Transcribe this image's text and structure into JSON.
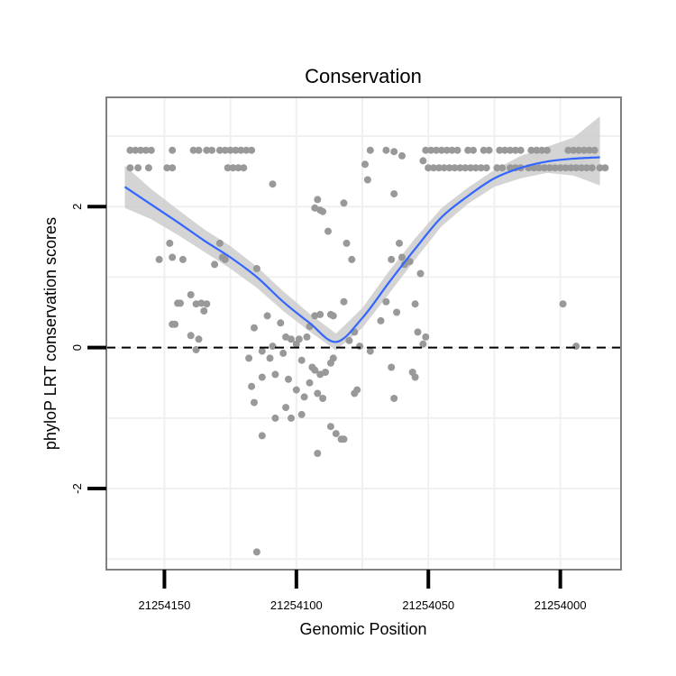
{
  "chart_data": {
    "type": "scatter",
    "title": "Conservation",
    "xlabel": "Genomic Position",
    "ylabel": "phyloP LRT conservation scores",
    "x_reversed": true,
    "xlim": [
      21254172,
      21253977
    ],
    "ylim": [
      -3.15,
      3.55
    ],
    "x_ticks": [
      21254150,
      21254100,
      21254050,
      21254000
    ],
    "x_tick_labels": [
      "21254150",
      "21254100",
      "21254050",
      "21254000"
    ],
    "y_ticks": [
      -2,
      0,
      2
    ],
    "y_tick_labels": [
      "-2",
      "0",
      "2"
    ],
    "grid": true,
    "reference_line": {
      "y": 0,
      "style": "dashed"
    },
    "colors": {
      "points": "#999999",
      "smooth": "#3366ff",
      "ribbon": "#cccccc",
      "grid": "#f0f0f0",
      "panel_border": "#808080"
    },
    "points": [
      [
        21254163,
        2.8
      ],
      [
        21254161,
        2.8
      ],
      [
        21254159,
        2.8
      ],
      [
        21254157,
        2.8
      ],
      [
        21254155,
        2.8
      ],
      [
        21254163,
        2.55
      ],
      [
        21254160,
        2.55
      ],
      [
        21254156,
        2.55
      ],
      [
        21254147,
        2.8
      ],
      [
        21254149,
        2.55
      ],
      [
        21254147,
        2.55
      ],
      [
        21254139,
        2.8
      ],
      [
        21254137,
        2.8
      ],
      [
        21254134,
        2.8
      ],
      [
        21254132,
        2.8
      ],
      [
        21254129,
        2.8
      ],
      [
        21254127,
        2.8
      ],
      [
        21254125,
        2.8
      ],
      [
        21254123,
        2.8
      ],
      [
        21254121,
        2.8
      ],
      [
        21254119,
        2.8
      ],
      [
        21254117,
        2.8
      ],
      [
        21254126,
        2.55
      ],
      [
        21254124,
        2.55
      ],
      [
        21254122,
        2.55
      ],
      [
        21254120,
        2.55
      ],
      [
        21254152,
        1.25
      ],
      [
        21254148,
        1.48
      ],
      [
        21254147,
        1.28
      ],
      [
        21254143,
        1.25
      ],
      [
        21254147,
        0.33
      ],
      [
        21254146,
        0.33
      ],
      [
        21254145,
        0.63
      ],
      [
        21254144,
        0.63
      ],
      [
        21254140,
        0.75
      ],
      [
        21254138,
        0.62
      ],
      [
        21254136,
        0.63
      ],
      [
        21254134,
        0.62
      ],
      [
        21254135,
        0.52
      ],
      [
        21254140,
        0.17
      ],
      [
        21254137,
        0.12
      ],
      [
        21254138,
        -0.03
      ],
      [
        21254131,
        1.18
      ],
      [
        21254129,
        1.48
      ],
      [
        21254128,
        1.28
      ],
      [
        21254127,
        1.25
      ],
      [
        21254115,
        1.12
      ],
      [
        21254109,
        2.32
      ],
      [
        21254100,
        0.05
      ],
      [
        21254109,
        0.02
      ],
      [
        21254116,
        0.28
      ],
      [
        21254111,
        0.45
      ],
      [
        21254106,
        0.35
      ],
      [
        21254104,
        0.15
      ],
      [
        21254102,
        0.12
      ],
      [
        21254099,
        0.12
      ],
      [
        21254096,
        0.15
      ],
      [
        21254095,
        0.3
      ],
      [
        21254093,
        0.45
      ],
      [
        21254091,
        0.47
      ],
      [
        21254087,
        0.47
      ],
      [
        21254086,
        0.45
      ],
      [
        21254118,
        -0.15
      ],
      [
        21254113,
        -0.05
      ],
      [
        21254110,
        -0.15
      ],
      [
        21254105,
        -0.08
      ],
      [
        21254098,
        -0.18
      ],
      [
        21254094,
        -0.28
      ],
      [
        21254093,
        -0.32
      ],
      [
        21254117,
        -0.55
      ],
      [
        21254113,
        -0.42
      ],
      [
        21254108,
        -0.38
      ],
      [
        21254103,
        -0.45
      ],
      [
        21254100,
        -0.6
      ],
      [
        21254095,
        -0.5
      ],
      [
        21254091,
        -0.38
      ],
      [
        21254116,
        -0.78
      ],
      [
        21254104,
        -0.85
      ],
      [
        21254098,
        -0.95
      ],
      [
        21254092,
        -0.65
      ],
      [
        21254090,
        -0.72
      ],
      [
        21254089,
        -0.35
      ],
      [
        21254087,
        -0.22
      ],
      [
        21254086,
        -0.15
      ],
      [
        21254113,
        -1.25
      ],
      [
        21254108,
        -1.0
      ],
      [
        21254102,
        -1.0
      ],
      [
        21254097,
        -0.7
      ],
      [
        21254092,
        -1.5
      ],
      [
        21254087,
        -1.12
      ],
      [
        21254085,
        -1.22
      ],
      [
        21254083,
        -1.3
      ],
      [
        21254082,
        -1.3
      ],
      [
        21254115,
        -2.9
      ],
      [
        21254093,
        1.98
      ],
      [
        21254092,
        2.1
      ],
      [
        21254091,
        1.95
      ],
      [
        21254090,
        1.93
      ],
      [
        21254088,
        1.65
      ],
      [
        21254082,
        2.05
      ],
      [
        21254081,
        1.48
      ],
      [
        21254079,
        1.25
      ],
      [
        21254082,
        0.65
      ],
      [
        21254078,
        0.22
      ],
      [
        21254076,
        0.02
      ],
      [
        21254080,
        0.1
      ],
      [
        21254078,
        -0.65
      ],
      [
        21254077,
        -0.6
      ],
      [
        21254072,
        -0.05
      ],
      [
        21254068,
        0.38
      ],
      [
        21254066,
        0.65
      ],
      [
        21254064,
        -0.28
      ],
      [
        21254063,
        -0.72
      ],
      [
        21254074,
        2.6
      ],
      [
        21254073,
        2.38
      ],
      [
        21254072,
        2.8
      ],
      [
        21254066,
        2.8
      ],
      [
        21254063,
        2.78
      ],
      [
        21254063,
        2.18
      ],
      [
        21254060,
        2.72
      ],
      [
        21254061,
        1.48
      ],
      [
        21254060,
        1.28
      ],
      [
        21254059,
        1.18
      ],
      [
        21254057,
        1.22
      ],
      [
        21254064,
        1.25
      ],
      [
        21254062,
        0.5
      ],
      [
        21254055,
        0.62
      ],
      [
        21254053,
        1.05
      ],
      [
        21254054,
        0.22
      ],
      [
        21254051,
        0.15
      ],
      [
        21254052,
        0.05
      ],
      [
        21254056,
        -0.35
      ],
      [
        21254055,
        -0.42
      ],
      [
        21254052,
        2.65
      ],
      [
        21254051,
        2.8
      ],
      [
        21254049,
        2.8
      ],
      [
        21254047,
        2.8
      ],
      [
        21254045,
        2.8
      ],
      [
        21254043,
        2.8
      ],
      [
        21254041,
        2.8
      ],
      [
        21254039,
        2.8
      ],
      [
        21254035,
        2.8
      ],
      [
        21254033,
        2.8
      ],
      [
        21254029,
        2.8
      ],
      [
        21254027,
        2.8
      ],
      [
        21254023,
        2.8
      ],
      [
        21254021,
        2.8
      ],
      [
        21254019,
        2.8
      ],
      [
        21254017,
        2.8
      ],
      [
        21254015,
        2.8
      ],
      [
        21254011,
        2.8
      ],
      [
        21254009,
        2.8
      ],
      [
        21254007,
        2.8
      ],
      [
        21254005,
        2.8
      ],
      [
        21253997,
        2.8
      ],
      [
        21253995,
        2.8
      ],
      [
        21253993,
        2.8
      ],
      [
        21253991,
        2.8
      ],
      [
        21253989,
        2.8
      ],
      [
        21253987,
        2.8
      ],
      [
        21254050,
        2.55
      ],
      [
        21254048,
        2.55
      ],
      [
        21254046,
        2.55
      ],
      [
        21254044,
        2.55
      ],
      [
        21254042,
        2.55
      ],
      [
        21254040,
        2.55
      ],
      [
        21254038,
        2.55
      ],
      [
        21254036,
        2.55
      ],
      [
        21254034,
        2.55
      ],
      [
        21254032,
        2.55
      ],
      [
        21254030,
        2.55
      ],
      [
        21254028,
        2.55
      ],
      [
        21254024,
        2.55
      ],
      [
        21254022,
        2.55
      ],
      [
        21254019,
        2.55
      ],
      [
        21254017,
        2.55
      ],
      [
        21254015,
        2.55
      ],
      [
        21254012,
        2.55
      ],
      [
        21254010,
        2.55
      ],
      [
        21254008,
        2.55
      ],
      [
        21254006,
        2.55
      ],
      [
        21254004,
        2.55
      ],
      [
        21254002,
        2.55
      ],
      [
        21254000,
        2.55
      ],
      [
        21253998,
        2.55
      ],
      [
        21253996,
        2.55
      ],
      [
        21253994,
        2.55
      ],
      [
        21253992,
        2.55
      ],
      [
        21253990,
        2.55
      ],
      [
        21253988,
        2.55
      ],
      [
        21253985,
        2.55
      ],
      [
        21253983,
        2.55
      ],
      [
        21253999,
        0.62
      ],
      [
        21253994,
        0.02
      ]
    ],
    "smooth_x": [
      21254165,
      21254155,
      21254145,
      21254135,
      21254125,
      21254115,
      21254105,
      21254095,
      21254085,
      21254075,
      21254065,
      21254055,
      21254045,
      21254035,
      21254025,
      21254015,
      21254005,
      21253995,
      21253985
    ],
    "smooth_y": [
      2.28,
      2.03,
      1.78,
      1.52,
      1.28,
      1.0,
      0.65,
      0.35,
      0.08,
      0.42,
      0.92,
      1.4,
      1.85,
      2.15,
      2.4,
      2.55,
      2.64,
      2.68,
      2.7
    ],
    "smooth_ymin": [
      1.98,
      1.82,
      1.6,
      1.36,
      1.12,
      0.85,
      0.52,
      0.23,
      -0.04,
      0.28,
      0.76,
      1.25,
      1.72,
      2.04,
      2.28,
      2.4,
      2.48,
      2.44,
      2.3
    ],
    "smooth_ymax": [
      2.58,
      2.25,
      1.96,
      1.68,
      1.44,
      1.15,
      0.8,
      0.48,
      0.2,
      0.56,
      1.08,
      1.55,
      1.98,
      2.27,
      2.52,
      2.72,
      2.85,
      2.98,
      3.28
    ]
  }
}
